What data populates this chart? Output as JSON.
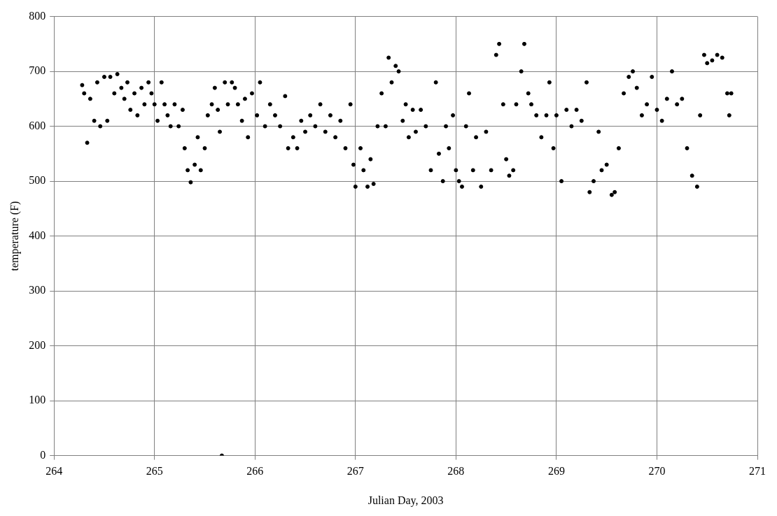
{
  "chart_data": {
    "type": "scatter",
    "xlabel": "Julian Day, 2003",
    "ylabel": "temperature (F)",
    "xlim": [
      264,
      271
    ],
    "xticks": [
      264,
      265,
      266,
      267,
      268,
      269,
      270,
      271
    ],
    "ylim": [
      0,
      800
    ],
    "yticks": [
      0,
      100,
      200,
      300,
      400,
      500,
      600,
      700,
      800
    ],
    "grid": true,
    "legend": false,
    "marker": "circle",
    "series": [
      {
        "color": "#000000",
        "x": [
          264.28,
          264.3,
          264.33,
          264.36,
          264.4,
          264.43,
          264.46,
          264.5,
          264.53,
          264.56,
          264.6,
          264.63,
          264.67,
          264.7,
          264.73,
          264.76,
          264.8,
          264.83,
          264.87,
          264.9,
          264.94,
          264.97,
          265.0,
          265.03,
          265.07,
          265.1,
          265.13,
          265.16,
          265.2,
          265.24,
          265.28,
          265.3,
          265.33,
          265.36,
          265.4,
          265.43,
          265.46,
          265.5,
          265.53,
          265.57,
          265.6,
          265.63,
          265.65,
          265.67,
          265.7,
          265.73,
          265.77,
          265.8,
          265.83,
          265.87,
          265.9,
          265.93,
          265.97,
          266.02,
          266.05,
          266.1,
          266.15,
          266.2,
          266.25,
          266.3,
          266.33,
          266.38,
          266.42,
          266.46,
          266.5,
          266.55,
          266.6,
          266.65,
          266.7,
          266.75,
          266.8,
          266.85,
          266.9,
          266.95,
          266.98,
          267.0,
          267.05,
          267.08,
          267.12,
          267.15,
          267.18,
          267.22,
          267.26,
          267.3,
          267.33,
          267.36,
          267.4,
          267.43,
          267.47,
          267.5,
          267.53,
          267.57,
          267.6,
          267.65,
          267.7,
          267.75,
          267.8,
          267.83,
          267.87,
          267.9,
          267.93,
          267.97,
          268.0,
          268.03,
          268.06,
          268.1,
          268.13,
          268.17,
          268.2,
          268.25,
          268.3,
          268.35,
          268.4,
          268.43,
          268.47,
          268.5,
          268.53,
          268.57,
          268.6,
          268.65,
          268.68,
          268.72,
          268.75,
          268.8,
          268.85,
          268.9,
          268.93,
          268.97,
          269.0,
          269.05,
          269.1,
          269.15,
          269.2,
          269.25,
          269.3,
          269.33,
          269.37,
          269.42,
          269.45,
          269.5,
          269.55,
          269.58,
          269.62,
          269.67,
          269.72,
          269.76,
          269.8,
          269.85,
          269.9,
          269.95,
          270.0,
          270.05,
          270.1,
          270.15,
          270.2,
          270.25,
          270.3,
          270.35,
          270.4,
          270.43,
          270.47,
          270.5,
          270.55,
          270.6,
          270.65,
          270.7,
          270.72,
          270.74
        ],
        "values": [
          675,
          660,
          570,
          650,
          610,
          680,
          600,
          690,
          610,
          690,
          660,
          695,
          670,
          650,
          680,
          630,
          660,
          620,
          670,
          640,
          680,
          660,
          640,
          610,
          680,
          640,
          620,
          600,
          640,
          600,
          630,
          560,
          520,
          498,
          530,
          580,
          520,
          560,
          620,
          640,
          670,
          630,
          590,
          0,
          680,
          640,
          680,
          670,
          640,
          610,
          650,
          580,
          660,
          620,
          680,
          600,
          640,
          620,
          600,
          655,
          560,
          580,
          560,
          610,
          590,
          620,
          600,
          640,
          590,
          620,
          580,
          610,
          560,
          640,
          530,
          490,
          560,
          520,
          490,
          540,
          495,
          600,
          660,
          600,
          725,
          680,
          710,
          700,
          610,
          640,
          580,
          630,
          590,
          630,
          600,
          520,
          680,
          550,
          500,
          600,
          560,
          620,
          520,
          500,
          490,
          600,
          660,
          520,
          580,
          490,
          590,
          520,
          730,
          750,
          640,
          540,
          510,
          520,
          640,
          700,
          750,
          660,
          640,
          620,
          580,
          620,
          680,
          560,
          620,
          500,
          630,
          600,
          630,
          610,
          680,
          480,
          500,
          590,
          520,
          530,
          475,
          480,
          560,
          660,
          690,
          700,
          670,
          620,
          640,
          690,
          630,
          610,
          650,
          700,
          640,
          650,
          560,
          510,
          490,
          620,
          730,
          715,
          720,
          730,
          725,
          660,
          620,
          660
        ]
      }
    ]
  }
}
